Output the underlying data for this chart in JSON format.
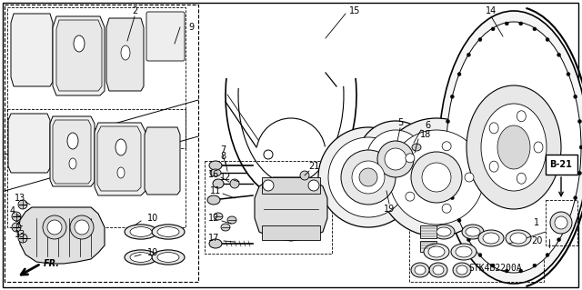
{
  "bg_color": "#ffffff",
  "watermark": "STK4B2200A",
  "diagram_code": "B-21"
}
